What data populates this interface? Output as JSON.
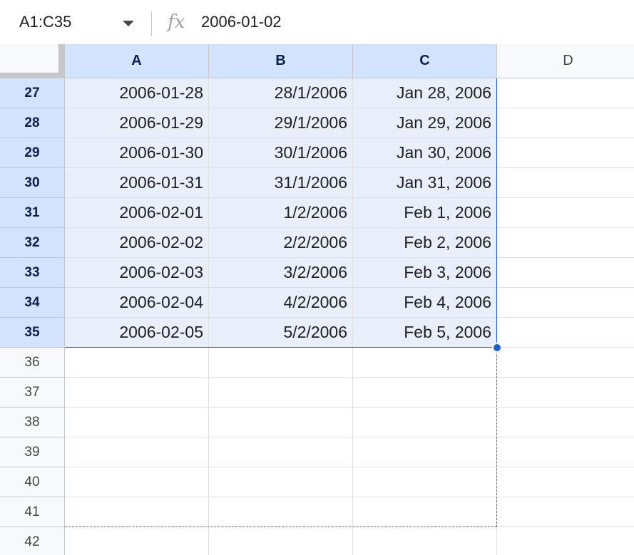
{
  "name_box": {
    "value": "A1:C35"
  },
  "formula_bar": {
    "fx_label": "fx",
    "value": "2006-01-02"
  },
  "columns": [
    {
      "label": "A",
      "selected": true
    },
    {
      "label": "B",
      "selected": true
    },
    {
      "label": "C",
      "selected": true
    },
    {
      "label": "D",
      "selected": false
    }
  ],
  "rows": [
    {
      "num": "27",
      "selected": true,
      "cells": [
        "2006-01-28",
        "28/1/2006",
        "Jan 28, 2006",
        ""
      ]
    },
    {
      "num": "28",
      "selected": true,
      "cells": [
        "2006-01-29",
        "29/1/2006",
        "Jan 29, 2006",
        ""
      ]
    },
    {
      "num": "29",
      "selected": true,
      "cells": [
        "2006-01-30",
        "30/1/2006",
        "Jan 30, 2006",
        ""
      ]
    },
    {
      "num": "30",
      "selected": true,
      "cells": [
        "2006-01-31",
        "31/1/2006",
        "Jan 31, 2006",
        ""
      ]
    },
    {
      "num": "31",
      "selected": true,
      "cells": [
        "2006-02-01",
        "1/2/2006",
        "Feb 1, 2006",
        ""
      ]
    },
    {
      "num": "32",
      "selected": true,
      "cells": [
        "2006-02-02",
        "2/2/2006",
        "Feb 2, 2006",
        ""
      ]
    },
    {
      "num": "33",
      "selected": true,
      "cells": [
        "2006-02-03",
        "3/2/2006",
        "Feb 3, 2006",
        ""
      ]
    },
    {
      "num": "34",
      "selected": true,
      "cells": [
        "2006-02-04",
        "4/2/2006",
        "Feb 4, 2006",
        ""
      ]
    },
    {
      "num": "35",
      "selected": true,
      "cells": [
        "2006-02-05",
        "5/2/2006",
        "Feb 5, 2006",
        ""
      ]
    },
    {
      "num": "36",
      "selected": false,
      "cells": [
        "",
        "",
        "",
        ""
      ]
    },
    {
      "num": "37",
      "selected": false,
      "cells": [
        "",
        "",
        "",
        ""
      ]
    },
    {
      "num": "38",
      "selected": false,
      "cells": [
        "",
        "",
        "",
        ""
      ]
    },
    {
      "num": "39",
      "selected": false,
      "cells": [
        "",
        "",
        "",
        ""
      ]
    },
    {
      "num": "40",
      "selected": false,
      "cells": [
        "",
        "",
        "",
        ""
      ]
    },
    {
      "num": "41",
      "selected": false,
      "cells": [
        "",
        "",
        "",
        ""
      ]
    },
    {
      "num": "42",
      "selected": false,
      "cells": [
        "",
        "",
        "",
        ""
      ]
    }
  ],
  "colors": {
    "selection": "#1a5fd0",
    "selected_header": "#d3e3fd",
    "selected_cell": "#e8eefa"
  }
}
